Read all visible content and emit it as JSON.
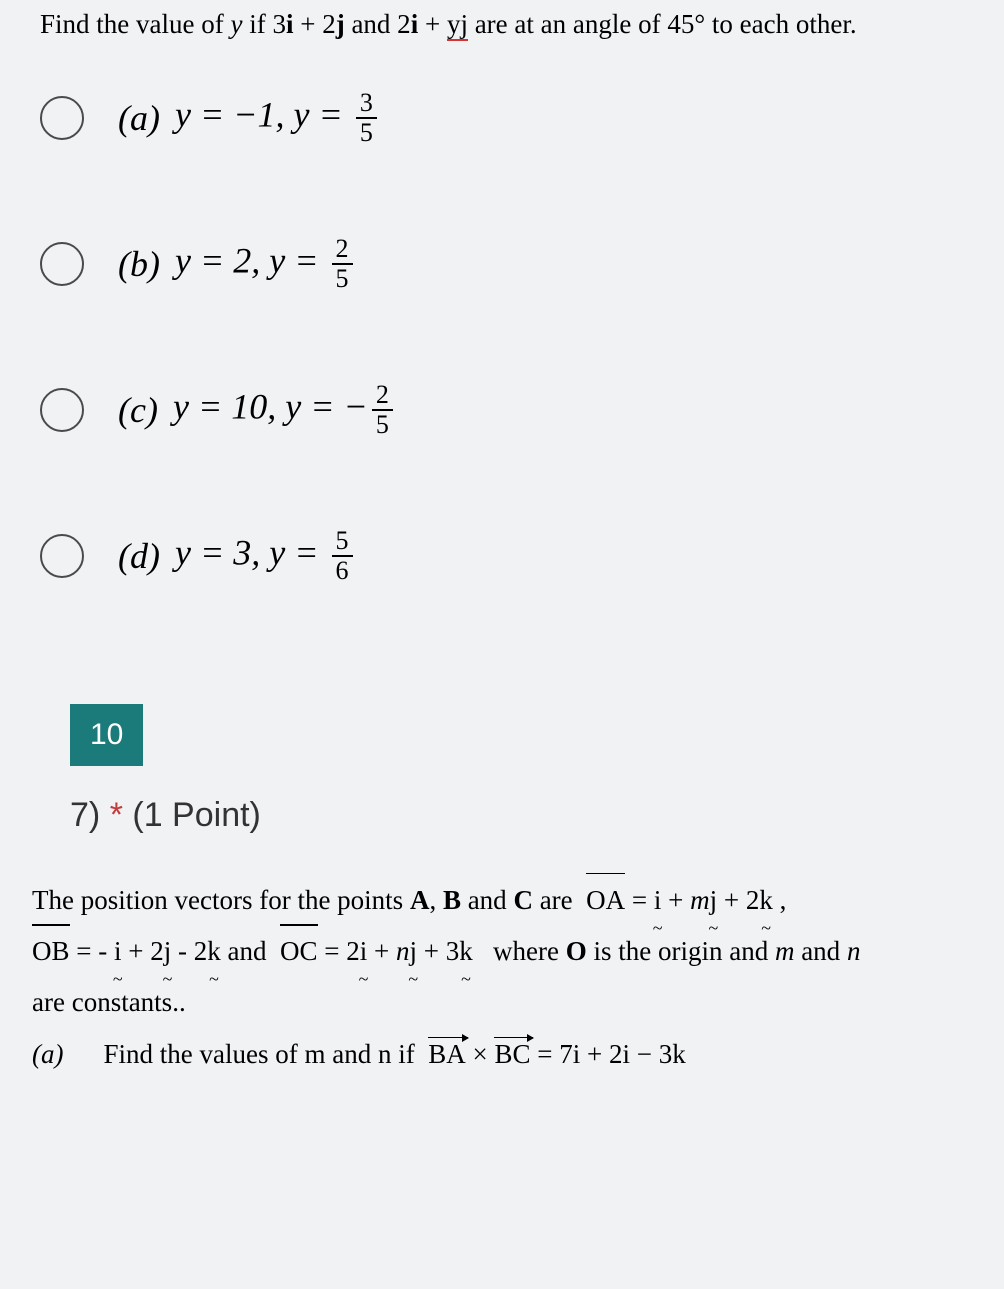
{
  "question1": {
    "text_parts": {
      "prefix": "Find the value of ",
      "var_y": "y",
      "mid1": " if 3",
      "i1": "i",
      "plus1": " + 2",
      "j1": "j",
      "and": " and 2",
      "i2": "i",
      "plus2": " + ",
      "yj": "yj",
      "suffix": " are at an angle of 45° to each other."
    },
    "options": [
      {
        "label": "(a)",
        "eq_prefix": "y = −1, y = ",
        "frac_num": "3",
        "frac_den": "5",
        "neg": ""
      },
      {
        "label": "(b)",
        "eq_prefix": "y = 2, y = ",
        "frac_num": "2",
        "frac_den": "5",
        "neg": ""
      },
      {
        "label": "(c)",
        "eq_prefix": "y = 10, y = ",
        "frac_num": "2",
        "frac_den": "5",
        "neg": "−"
      },
      {
        "label": "(d)",
        "eq_prefix": "y = 3, y = ",
        "frac_num": "5",
        "frac_den": "6",
        "neg": ""
      }
    ]
  },
  "question_box_number": "10",
  "question_header": {
    "number": "7)",
    "asterisk": "*",
    "points": "(1 Point)"
  },
  "question2": {
    "line1_parts": {
      "t1": "The position vectors for the points ",
      "A": "A",
      "c1": ", ",
      "B": "B",
      "and": " and ",
      "C": "C",
      "are": " are ",
      "OA": "OA",
      "eq": " = ",
      "i": "i",
      "plus": " + ",
      "m": "m",
      "j": "j",
      "plus2": " + 2",
      "k": "k",
      "end": " ,"
    },
    "line2_parts": {
      "OB": "OB",
      "eq1": " = - ",
      "i1": "i",
      "p1": " + 2",
      "j1": "j",
      "m1": " - 2",
      "k1": "k",
      "and": " and ",
      "OC": "OC",
      "eq2": " = 2",
      "i2": "i",
      "p2": " + ",
      "n": "n",
      "j2": "j",
      "p3": " + 3",
      "k2": "k",
      "where": " where ",
      "O": "O",
      "t2": " is the origin and ",
      "mm": "m",
      "t3": " and ",
      "nn": "n"
    },
    "line3": "are constants..",
    "part_a": {
      "label": "(a)",
      "text_prefix": "Find the values of ",
      "m": "m",
      "and": " and ",
      "n": "n",
      "if": " if ",
      "BA": "BA",
      "cross": " × ",
      "BC": "BC",
      "eq": " = 7",
      "i": "i",
      "plus": " + 2",
      "j": "i",
      "minus": " − 3",
      "k": "k"
    }
  },
  "colors": {
    "background": "#f0f2f4",
    "teal": "#1b7a7a",
    "red": "#c43a3a",
    "underline_red": "#d63333"
  }
}
